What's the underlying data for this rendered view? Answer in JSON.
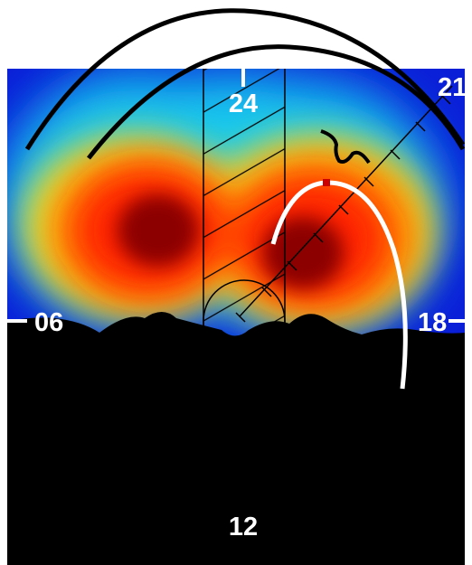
{
  "figure": {
    "labels": {
      "top": "24",
      "top_right": "21",
      "left": "06",
      "right": "18",
      "bottom": "12"
    },
    "colors": {
      "background": "#ffffff",
      "night_side": "#000000",
      "low_intensity": "#0a1ed8",
      "mid_intensity": "#19c8ee",
      "high_intensity": "#ff2000",
      "peak_intensity": "#8c0000",
      "arc_stroke": "#000000",
      "oval_stroke": "#ffffff",
      "oval_marker": "#cc0000",
      "label_color": "#ffffff"
    }
  }
}
